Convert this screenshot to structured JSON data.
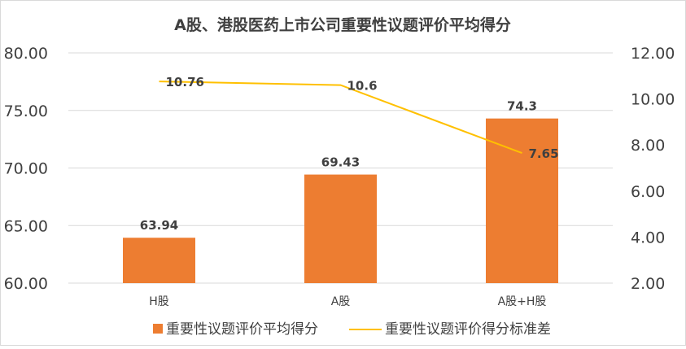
{
  "chart_data": {
    "type": "bar",
    "title": "A股、港股医药上市公司重要性议题评价平均得分",
    "categories": [
      "H股",
      "A股",
      "A股+H股"
    ],
    "series": [
      {
        "name": "重要性议题评价平均得分",
        "type": "bar",
        "axis": "left",
        "color": "#ed7d31",
        "values": [
          63.94,
          69.43,
          74.3
        ],
        "labels": [
          "63.94",
          "69.43",
          "74.3"
        ]
      },
      {
        "name": "重要性议题评价得分标准差",
        "type": "line",
        "axis": "right",
        "color": "#ffc000",
        "values": [
          10.76,
          10.6,
          7.65
        ],
        "labels": [
          "10.76",
          "10.6",
          "7.65"
        ]
      }
    ],
    "y_left": {
      "min": 60,
      "max": 80,
      "ticks": [
        "60.00",
        "65.00",
        "70.00",
        "75.00",
        "80.00"
      ]
    },
    "y_right": {
      "min": 2,
      "max": 12,
      "ticks": [
        "2.00",
        "4.00",
        "6.00",
        "8.00",
        "10.00",
        "12.00"
      ]
    },
    "grid": true,
    "legend_position": "bottom"
  }
}
